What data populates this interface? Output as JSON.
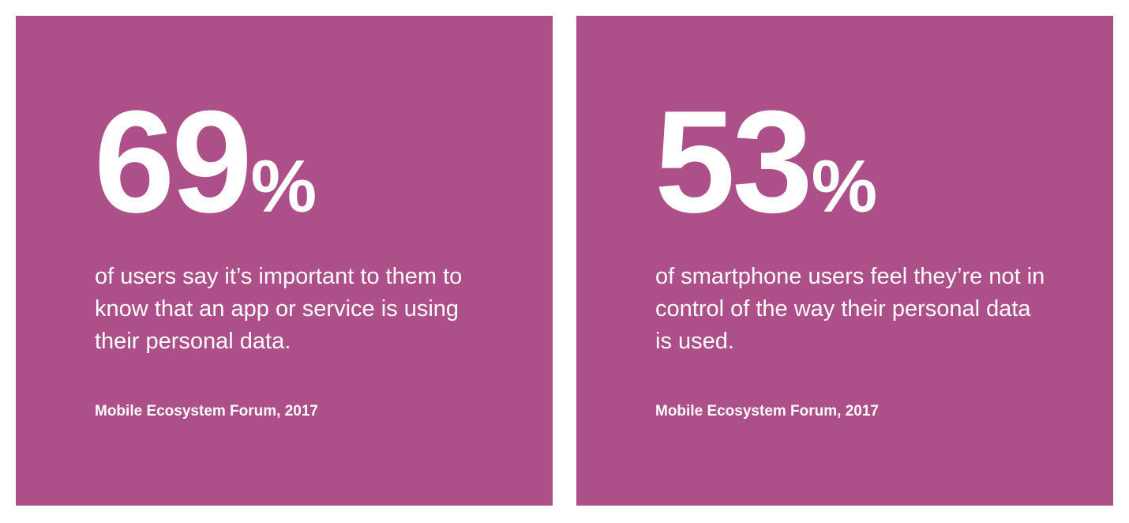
{
  "colors": {
    "card_background": "#ad4f88",
    "text": "#ffffff",
    "page_background": "#ffffff"
  },
  "cards": [
    {
      "stat_number": "69",
      "stat_unit": "%",
      "value_percent": 69,
      "description": "of users say it’s important to them to know that an app or service is using their personal data.",
      "source": "Mobile Ecosystem Forum, 2017"
    },
    {
      "stat_number": "53",
      "stat_unit": "%",
      "value_percent": 53,
      "description": "of smartphone users feel they’re not in control of the way their personal data is used.",
      "source": "Mobile Ecosystem Forum, 2017"
    }
  ]
}
